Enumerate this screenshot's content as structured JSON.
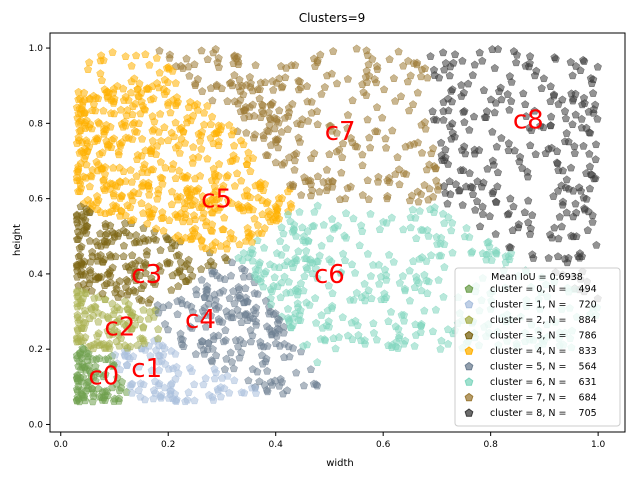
{
  "chart_data": {
    "type": "scatter",
    "title": "Clusters=9",
    "xlabel": "width",
    "ylabel": "height",
    "xlim": [
      -0.02,
      1.05
    ],
    "ylim": [
      -0.02,
      1.04
    ],
    "xticks": [
      "0.0",
      "0.2",
      "0.4",
      "0.6",
      "0.8",
      "1.0"
    ],
    "yticks": [
      "0.0",
      "0.2",
      "0.4",
      "0.6",
      "0.8",
      "1.0"
    ],
    "grid": false,
    "legend_position": "lower-right",
    "legend_title": "Mean IoU = 0.6938",
    "marker": "pentagon",
    "series": [
      {
        "name": "cluster = 0, N =    494",
        "color": "#6fa04f",
        "centroid": [
          0.06,
          0.12
        ],
        "label": "c0"
      },
      {
        "name": "cluster = 1, N =    720",
        "color": "#a9bfdd",
        "centroid": [
          0.16,
          0.15
        ],
        "label": "c1"
      },
      {
        "name": "cluster = 2, N =    884",
        "color": "#aab050",
        "centroid": [
          0.11,
          0.26
        ],
        "label": "c2"
      },
      {
        "name": "cluster = 3, N =    786",
        "color": "#7b6412",
        "centroid": [
          0.15,
          0.4
        ],
        "label": "c3"
      },
      {
        "name": "cluster = 4, N =    833",
        "color": "#ffb000",
        "centroid": [
          0.25,
          0.6
        ],
        "label": "c4"
      },
      {
        "name": "cluster = 5, N =    564",
        "color": "#6d7f92",
        "centroid": [
          0.26,
          0.28
        ],
        "label": "c5"
      },
      {
        "name": "cluster = 6, N =    631",
        "color": "#7fd6be",
        "centroid": [
          0.5,
          0.4
        ],
        "label": "c6"
      },
      {
        "name": "cluster = 7, N =    684",
        "color": "#9c7a35",
        "centroid": [
          0.52,
          0.78
        ],
        "label": "c7"
      },
      {
        "name": "cluster = 8, N =    705",
        "color": "#3a3a3a",
        "centroid": [
          0.87,
          0.81
        ],
        "label": "c8"
      }
    ],
    "annotations": [
      {
        "text": "c0",
        "x": 0.08,
        "y": 0.13
      },
      {
        "text": "c1",
        "x": 0.16,
        "y": 0.15
      },
      {
        "text": "c2",
        "x": 0.11,
        "y": 0.26
      },
      {
        "text": "c3",
        "x": 0.16,
        "y": 0.4
      },
      {
        "text": "c4",
        "x": 0.26,
        "y": 0.28
      },
      {
        "text": "c5",
        "x": 0.29,
        "y": 0.6
      },
      {
        "text": "c6",
        "x": 0.5,
        "y": 0.4
      },
      {
        "text": "c7",
        "x": 0.52,
        "y": 0.78
      },
      {
        "text": "c8",
        "x": 0.87,
        "y": 0.81
      }
    ]
  }
}
